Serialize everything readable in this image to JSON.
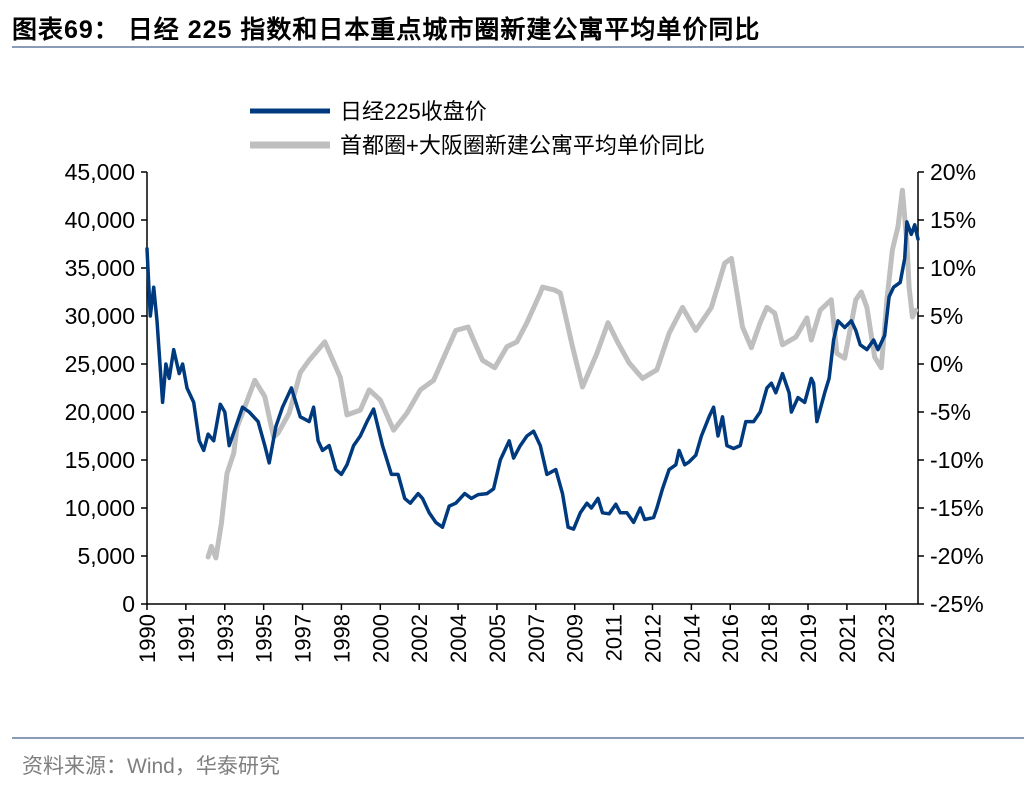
{
  "title": "图表69：  日经 225 指数和日本重点城市圈新建公寓平均单价同比",
  "source": "资料来源：Wind，华泰研究",
  "chart_data": {
    "type": "line",
    "title": "",
    "xlabel": "",
    "ylabel_left": "",
    "ylabel_right": "",
    "x_tick_labels": [
      "1990",
      "1991",
      "1993",
      "1995",
      "1997",
      "1998",
      "2000",
      "2002",
      "2004",
      "2005",
      "2007",
      "2009",
      "2011",
      "2012",
      "2014",
      "2016",
      "2018",
      "2019",
      "2021",
      "2023"
    ],
    "x_ticks": [
      1990.0,
      1991.75,
      1993.5,
      1995.25,
      1997.0,
      1998.75,
      2000.5,
      2002.25,
      2004.0,
      2005.75,
      2007.5,
      2009.25,
      2011.0,
      2012.75,
      2014.5,
      2016.25,
      2018.0,
      2019.75,
      2021.5,
      2023.25
    ],
    "xlim": [
      1990.0,
      2024.7
    ],
    "ylim_left": [
      0,
      45000
    ],
    "y_ticks_left": [
      "0",
      "5,000",
      "10,000",
      "15,000",
      "20,000",
      "25,000",
      "30,000",
      "35,000",
      "40,000",
      "45,000"
    ],
    "ylim_right": [
      -25,
      20
    ],
    "y_ticks_right": [
      "-25%",
      "-20%",
      "-15%",
      "-10%",
      "-5%",
      "0%",
      "5%",
      "10%",
      "15%",
      "20%"
    ],
    "grid": false,
    "legend_placement": "top",
    "series": [
      {
        "name": "日经225收盘价",
        "axis": "left",
        "color": "#003A7E",
        "points": [
          [
            1990.0,
            37000
          ],
          [
            1990.15,
            30000
          ],
          [
            1990.3,
            33000
          ],
          [
            1990.45,
            29500
          ],
          [
            1990.7,
            21000
          ],
          [
            1990.85,
            25000
          ],
          [
            1991.0,
            23500
          ],
          [
            1991.2,
            26500
          ],
          [
            1991.45,
            24000
          ],
          [
            1991.6,
            25000
          ],
          [
            1991.8,
            22500
          ],
          [
            1992.1,
            21000
          ],
          [
            1992.35,
            17000
          ],
          [
            1992.55,
            16000
          ],
          [
            1992.75,
            17700
          ],
          [
            1993.0,
            17000
          ],
          [
            1993.3,
            20800
          ],
          [
            1993.5,
            20000
          ],
          [
            1993.7,
            16500
          ],
          [
            1994.0,
            18500
          ],
          [
            1994.3,
            20500
          ],
          [
            1994.6,
            20000
          ],
          [
            1995.0,
            19000
          ],
          [
            1995.3,
            16500
          ],
          [
            1995.5,
            14700
          ],
          [
            1995.8,
            18500
          ],
          [
            1996.1,
            20500
          ],
          [
            1996.5,
            22500
          ],
          [
            1996.9,
            19500
          ],
          [
            1997.3,
            19000
          ],
          [
            1997.5,
            20500
          ],
          [
            1997.7,
            17000
          ],
          [
            1997.9,
            16000
          ],
          [
            1998.2,
            16500
          ],
          [
            1998.5,
            14000
          ],
          [
            1998.75,
            13500
          ],
          [
            1999.0,
            14500
          ],
          [
            1999.3,
            16500
          ],
          [
            1999.6,
            17500
          ],
          [
            1999.9,
            19000
          ],
          [
            2000.2,
            20300
          ],
          [
            2000.6,
            16500
          ],
          [
            2001.0,
            13500
          ],
          [
            2001.3,
            13500
          ],
          [
            2001.6,
            11000
          ],
          [
            2001.85,
            10500
          ],
          [
            2002.2,
            11500
          ],
          [
            2002.4,
            11000
          ],
          [
            2002.7,
            9500
          ],
          [
            2003.0,
            8500
          ],
          [
            2003.3,
            8000
          ],
          [
            2003.6,
            10200
          ],
          [
            2003.9,
            10500
          ],
          [
            2004.3,
            11500
          ],
          [
            2004.6,
            11000
          ],
          [
            2004.9,
            11400
          ],
          [
            2005.3,
            11500
          ],
          [
            2005.6,
            12000
          ],
          [
            2005.9,
            15000
          ],
          [
            2006.3,
            17000
          ],
          [
            2006.5,
            15200
          ],
          [
            2006.8,
            16500
          ],
          [
            2007.1,
            17500
          ],
          [
            2007.4,
            18000
          ],
          [
            2007.7,
            16500
          ],
          [
            2008.0,
            13500
          ],
          [
            2008.4,
            14000
          ],
          [
            2008.7,
            11500
          ],
          [
            2008.95,
            8000
          ],
          [
            2009.2,
            7800
          ],
          [
            2009.5,
            9500
          ],
          [
            2009.8,
            10500
          ],
          [
            2010.0,
            10000
          ],
          [
            2010.3,
            11000
          ],
          [
            2010.5,
            9500
          ],
          [
            2010.8,
            9400
          ],
          [
            2011.1,
            10400
          ],
          [
            2011.3,
            9500
          ],
          [
            2011.6,
            9500
          ],
          [
            2011.9,
            8500
          ],
          [
            2012.2,
            10000
          ],
          [
            2012.4,
            8800
          ],
          [
            2012.8,
            9000
          ],
          [
            2012.95,
            10000
          ],
          [
            2013.2,
            12000
          ],
          [
            2013.5,
            14000
          ],
          [
            2013.8,
            14500
          ],
          [
            2013.95,
            16000
          ],
          [
            2014.2,
            14500
          ],
          [
            2014.4,
            14800
          ],
          [
            2014.7,
            15500
          ],
          [
            2014.95,
            17500
          ],
          [
            2015.3,
            19500
          ],
          [
            2015.5,
            20500
          ],
          [
            2015.7,
            17500
          ],
          [
            2015.9,
            19500
          ],
          [
            2016.1,
            16500
          ],
          [
            2016.4,
            16200
          ],
          [
            2016.7,
            16500
          ],
          [
            2016.95,
            19000
          ],
          [
            2017.3,
            19000
          ],
          [
            2017.6,
            20000
          ],
          [
            2017.9,
            22500
          ],
          [
            2018.1,
            23000
          ],
          [
            2018.3,
            22000
          ],
          [
            2018.6,
            24000
          ],
          [
            2018.9,
            22000
          ],
          [
            2019.0,
            20000
          ],
          [
            2019.3,
            21500
          ],
          [
            2019.6,
            21000
          ],
          [
            2019.9,
            23500
          ],
          [
            2020.0,
            23000
          ],
          [
            2020.15,
            19000
          ],
          [
            2020.5,
            22000
          ],
          [
            2020.7,
            23500
          ],
          [
            2020.9,
            27500
          ],
          [
            2021.1,
            29500
          ],
          [
            2021.4,
            28800
          ],
          [
            2021.7,
            29500
          ],
          [
            2021.9,
            28500
          ],
          [
            2022.1,
            27000
          ],
          [
            2022.4,
            26500
          ],
          [
            2022.7,
            27500
          ],
          [
            2022.9,
            26500
          ],
          [
            2023.2,
            28000
          ],
          [
            2023.4,
            32000
          ],
          [
            2023.6,
            33000
          ],
          [
            2023.9,
            33500
          ],
          [
            2024.1,
            36000
          ],
          [
            2024.2,
            39800
          ],
          [
            2024.4,
            38500
          ],
          [
            2024.55,
            39500
          ],
          [
            2024.7,
            38000
          ]
        ]
      },
      {
        "name": "首都圈+大阪圈新建公寓平均单价同比",
        "axis": "right",
        "color": "#BFBFBF",
        "points": [
          [
            1992.75,
            -20.1
          ],
          [
            1992.9,
            -19
          ],
          [
            1993.1,
            -20.2
          ],
          [
            1993.35,
            -16.6
          ],
          [
            1993.6,
            -11.4
          ],
          [
            1993.9,
            -9.3
          ],
          [
            1994.05,
            -6.6
          ],
          [
            1994.3,
            -5.1
          ],
          [
            1994.85,
            -1.7
          ],
          [
            1995.3,
            -3.4
          ],
          [
            1995.7,
            -7.6
          ],
          [
            1995.9,
            -7.2
          ],
          [
            1996.4,
            -5.1
          ],
          [
            1996.9,
            -0.9
          ],
          [
            1997.3,
            0.4
          ],
          [
            1998.0,
            2.3
          ],
          [
            1998.7,
            -1.4
          ],
          [
            1999.0,
            -5.3
          ],
          [
            1999.6,
            -4.8
          ],
          [
            2000.0,
            -2.7
          ],
          [
            2000.5,
            -3.75
          ],
          [
            2001.1,
            -6.9
          ],
          [
            2001.7,
            -5.1
          ],
          [
            2002.3,
            -2.7
          ],
          [
            2002.9,
            -1.7
          ],
          [
            2003.3,
            0.4
          ],
          [
            2003.9,
            3.5
          ],
          [
            2004.45,
            3.85
          ],
          [
            2004.7,
            2.5
          ],
          [
            2005.1,
            0.4
          ],
          [
            2005.65,
            -0.4
          ],
          [
            2006.2,
            1.8
          ],
          [
            2006.65,
            2.3
          ],
          [
            2007.1,
            4.3
          ],
          [
            2007.7,
            7.4
          ],
          [
            2007.8,
            8.0
          ],
          [
            2008.35,
            7.7
          ],
          [
            2008.6,
            7.4
          ],
          [
            2009.15,
            1.8
          ],
          [
            2009.6,
            -2.4
          ],
          [
            2010.25,
            1.1
          ],
          [
            2010.75,
            4.3
          ],
          [
            2011.2,
            2.2
          ],
          [
            2011.7,
            0.1
          ],
          [
            2012.3,
            -1.5
          ],
          [
            2012.95,
            -0.6
          ],
          [
            2013.5,
            3.2
          ],
          [
            2014.1,
            5.9
          ],
          [
            2014.7,
            3.5
          ],
          [
            2015.4,
            5.9
          ],
          [
            2016.0,
            10.5
          ],
          [
            2016.3,
            11.0
          ],
          [
            2016.8,
            3.85
          ],
          [
            2017.2,
            1.7
          ],
          [
            2017.6,
            4.3
          ],
          [
            2017.9,
            5.9
          ],
          [
            2018.25,
            5.3
          ],
          [
            2018.6,
            2.0
          ],
          [
            2019.2,
            2.8
          ],
          [
            2019.7,
            4.8
          ],
          [
            2019.9,
            2.5
          ],
          [
            2020.3,
            5.6
          ],
          [
            2020.8,
            6.7
          ],
          [
            2021.05,
            1.1
          ],
          [
            2021.4,
            0.6
          ],
          [
            2021.9,
            6.7
          ],
          [
            2022.15,
            7.5
          ],
          [
            2022.4,
            5.9
          ],
          [
            2022.75,
            0.7
          ],
          [
            2023.05,
            -0.4
          ],
          [
            2023.3,
            6.7
          ],
          [
            2023.55,
            11.9
          ],
          [
            2023.8,
            14.3
          ],
          [
            2024.0,
            18.1
          ],
          [
            2024.2,
            12.6
          ],
          [
            2024.3,
            8.0
          ],
          [
            2024.45,
            4.9
          ],
          [
            2024.6,
            5.6
          ]
        ]
      }
    ]
  }
}
